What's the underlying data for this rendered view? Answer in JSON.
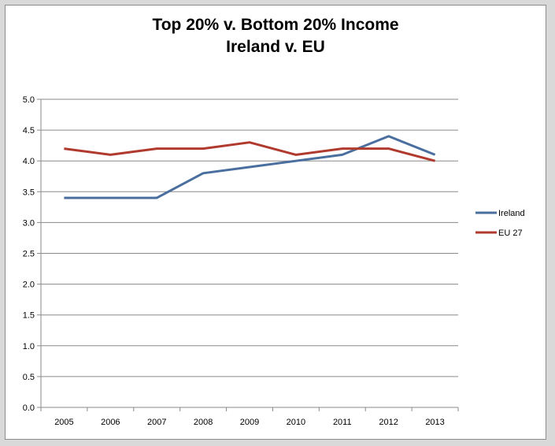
{
  "chart_data": {
    "type": "line",
    "title_line1": "Top 20% v. Bottom 20% Income",
    "title_line2": "Ireland v. EU",
    "xlabel": "",
    "ylabel": "",
    "categories": [
      "2005",
      "2006",
      "2007",
      "2008",
      "2009",
      "2010",
      "2011",
      "2012",
      "2013"
    ],
    "series": [
      {
        "name": "Ireland",
        "color": "#4a6f9f",
        "values": [
          3.4,
          3.4,
          3.4,
          3.8,
          3.9,
          4.0,
          4.1,
          4.4,
          4.1
        ]
      },
      {
        "name": "EU 27",
        "color": "#b03a2e",
        "values": [
          4.2,
          4.1,
          4.2,
          4.2,
          4.3,
          4.1,
          4.2,
          4.2,
          4.0
        ]
      }
    ],
    "ylim": [
      0,
      5
    ],
    "yticks": [
      "0.0",
      "0.5",
      "1.0",
      "1.5",
      "2.0",
      "2.5",
      "3.0",
      "3.5",
      "4.0",
      "4.5",
      "5.0"
    ],
    "grid": true,
    "legend_position": "right"
  }
}
